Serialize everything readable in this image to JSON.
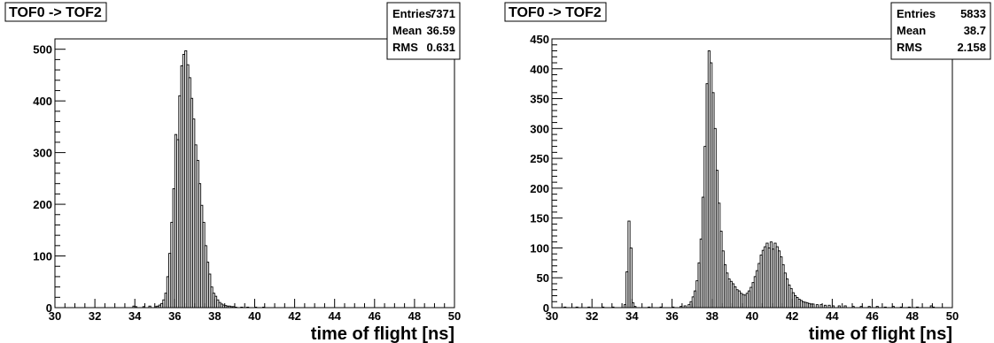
{
  "chart_data": [
    {
      "type": "bar",
      "title": "TOF0 -> TOF2",
      "xlabel": "time of flight [ns]",
      "ylabel": "",
      "xlim": [
        30,
        50
      ],
      "ylim": [
        0,
        520
      ],
      "xticks": [
        30,
        32,
        34,
        36,
        38,
        40,
        42,
        44,
        46,
        48,
        50
      ],
      "yticks": [
        0,
        100,
        200,
        300,
        400,
        500
      ],
      "stats": {
        "entries_label": "Entries",
        "entries": "7371",
        "mean_label": "Mean",
        "mean": "36.59",
        "rms_label": "RMS",
        "rms": "0.631"
      },
      "bin_width": 0.1,
      "bins": [
        [
          33.9,
          3
        ],
        [
          34.0,
          2
        ],
        [
          34.4,
          2
        ],
        [
          34.7,
          3
        ],
        [
          35.0,
          2
        ],
        [
          35.1,
          3
        ],
        [
          35.2,
          5
        ],
        [
          35.3,
          8
        ],
        [
          35.4,
          15
        ],
        [
          35.5,
          28
        ],
        [
          35.6,
          60
        ],
        [
          35.7,
          105
        ],
        [
          35.8,
          165
        ],
        [
          35.9,
          230
        ],
        [
          36.0,
          335
        ],
        [
          36.1,
          325
        ],
        [
          36.2,
          410
        ],
        [
          36.3,
          468
        ],
        [
          36.4,
          490
        ],
        [
          36.5,
          497
        ],
        [
          36.6,
          470
        ],
        [
          36.7,
          445
        ],
        [
          36.8,
          405
        ],
        [
          36.9,
          365
        ],
        [
          37.0,
          315
        ],
        [
          37.1,
          285
        ],
        [
          37.2,
          240
        ],
        [
          37.3,
          198
        ],
        [
          37.4,
          165
        ],
        [
          37.5,
          120
        ],
        [
          37.6,
          88
        ],
        [
          37.7,
          65
        ],
        [
          37.8,
          40
        ],
        [
          37.9,
          28
        ],
        [
          38.0,
          22
        ],
        [
          38.1,
          15
        ],
        [
          38.2,
          10
        ],
        [
          38.3,
          7
        ],
        [
          38.4,
          5
        ],
        [
          38.5,
          4
        ],
        [
          38.6,
          3
        ],
        [
          38.7,
          3
        ],
        [
          38.8,
          2
        ],
        [
          38.9,
          2
        ],
        [
          39.0,
          1
        ],
        [
          39.3,
          1
        ],
        [
          39.6,
          1
        ],
        [
          40.0,
          1
        ],
        [
          40.4,
          1
        ]
      ]
    },
    {
      "type": "bar",
      "title": "TOF0 -> TOF2",
      "xlabel": "time of flight [ns]",
      "ylabel": "",
      "xlim": [
        30,
        50
      ],
      "ylim": [
        0,
        450
      ],
      "xticks": [
        30,
        32,
        34,
        36,
        38,
        40,
        42,
        44,
        46,
        48,
        50
      ],
      "yticks": [
        0,
        50,
        100,
        150,
        200,
        250,
        300,
        350,
        400,
        450
      ],
      "stats": {
        "entries_label": "Entries",
        "entries": "5833",
        "mean_label": "Mean",
        "mean": "38.7",
        "rms_label": "RMS",
        "rms": "2.158"
      },
      "bin_width": 0.1,
      "bins": [
        [
          30.6,
          1
        ],
        [
          31.2,
          1
        ],
        [
          31.8,
          1
        ],
        [
          32.5,
          1
        ],
        [
          33.0,
          1
        ],
        [
          33.6,
          5
        ],
        [
          33.7,
          60
        ],
        [
          33.8,
          145
        ],
        [
          33.9,
          100
        ],
        [
          34.0,
          8
        ],
        [
          34.1,
          2
        ],
        [
          34.8,
          1
        ],
        [
          35.4,
          1
        ],
        [
          36.0,
          1
        ],
        [
          36.4,
          2
        ],
        [
          36.6,
          3
        ],
        [
          36.8,
          5
        ],
        [
          36.9,
          10
        ],
        [
          37.0,
          18
        ],
        [
          37.1,
          28
        ],
        [
          37.2,
          45
        ],
        [
          37.3,
          75
        ],
        [
          37.4,
          115
        ],
        [
          37.5,
          185
        ],
        [
          37.6,
          270
        ],
        [
          37.7,
          375
        ],
        [
          37.8,
          430
        ],
        [
          37.9,
          410
        ],
        [
          38.0,
          360
        ],
        [
          38.1,
          300
        ],
        [
          38.2,
          230
        ],
        [
          38.3,
          175
        ],
        [
          38.4,
          128
        ],
        [
          38.5,
          95
        ],
        [
          38.6,
          72
        ],
        [
          38.7,
          58
        ],
        [
          38.8,
          48
        ],
        [
          38.9,
          44
        ],
        [
          39.0,
          40
        ],
        [
          39.1,
          35
        ],
        [
          39.2,
          30
        ],
        [
          39.3,
          28
        ],
        [
          39.4,
          24
        ],
        [
          39.5,
          22
        ],
        [
          39.6,
          21
        ],
        [
          39.7,
          24
        ],
        [
          39.8,
          28
        ],
        [
          39.9,
          34
        ],
        [
          40.0,
          42
        ],
        [
          40.1,
          52
        ],
        [
          40.2,
          62
        ],
        [
          40.3,
          74
        ],
        [
          40.4,
          88
        ],
        [
          40.5,
          96
        ],
        [
          40.6,
          102
        ],
        [
          40.7,
          108
        ],
        [
          40.8,
          100
        ],
        [
          40.9,
          110
        ],
        [
          41.0,
          98
        ],
        [
          41.1,
          108
        ],
        [
          41.2,
          102
        ],
        [
          41.3,
          95
        ],
        [
          41.4,
          85
        ],
        [
          41.5,
          72
        ],
        [
          41.6,
          58
        ],
        [
          41.7,
          48
        ],
        [
          41.8,
          38
        ],
        [
          41.9,
          32
        ],
        [
          42.0,
          25
        ],
        [
          42.1,
          20
        ],
        [
          42.2,
          17
        ],
        [
          42.3,
          14
        ],
        [
          42.4,
          12
        ],
        [
          42.5,
          10
        ],
        [
          42.6,
          9
        ],
        [
          42.7,
          8
        ],
        [
          42.8,
          7
        ],
        [
          42.9,
          6
        ],
        [
          43.0,
          6
        ],
        [
          43.2,
          5
        ],
        [
          43.4,
          5
        ],
        [
          43.6,
          4
        ],
        [
          43.8,
          4
        ],
        [
          44.0,
          3
        ],
        [
          44.3,
          3
        ],
        [
          44.6,
          3
        ],
        [
          45.0,
          2
        ],
        [
          45.4,
          2
        ],
        [
          45.8,
          2
        ],
        [
          46.2,
          2
        ],
        [
          46.6,
          1
        ],
        [
          47.0,
          2
        ],
        [
          47.4,
          1
        ],
        [
          47.8,
          1
        ],
        [
          48.2,
          1
        ],
        [
          48.9,
          3
        ],
        [
          49.0,
          1
        ]
      ]
    }
  ]
}
